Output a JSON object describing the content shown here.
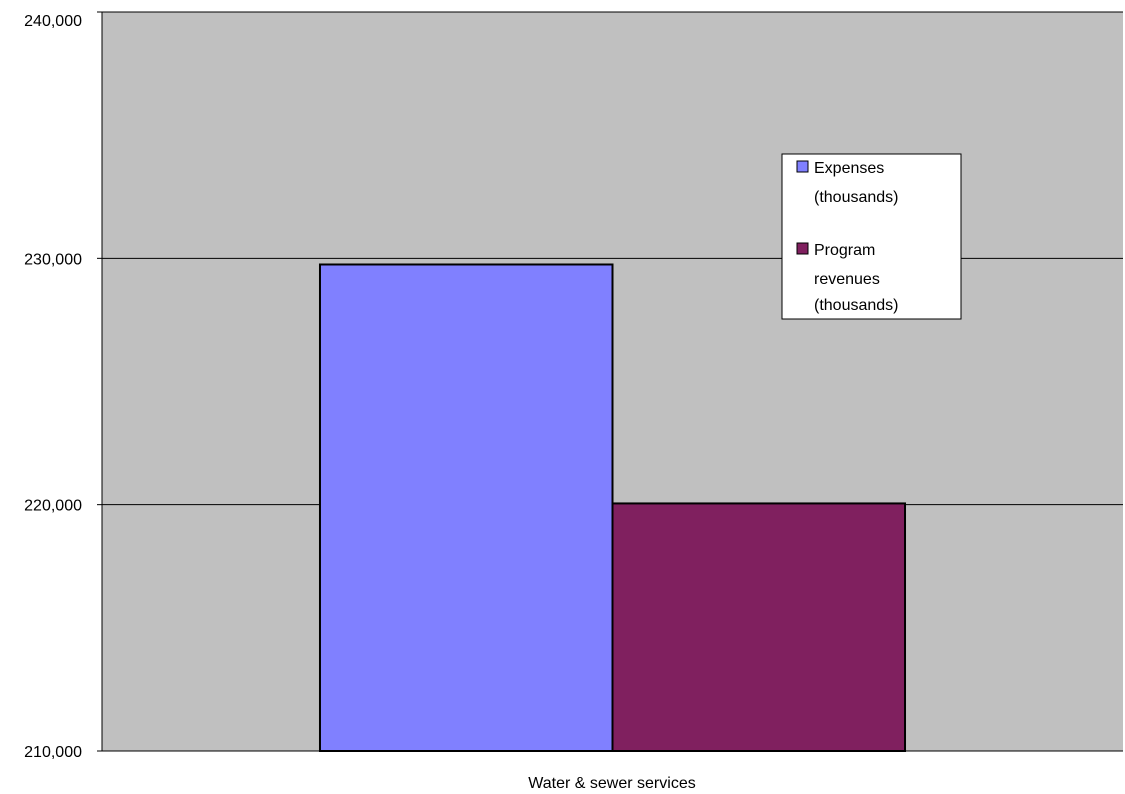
{
  "chart_data": {
    "type": "bar",
    "categories": [
      "Water & sewer services"
    ],
    "series": [
      {
        "name": "Expenses (thousands)",
        "legend_lines": [
          "Expenses",
          "(thousands)"
        ],
        "values": [
          229750
        ],
        "color": "#8080FF"
      },
      {
        "name": "Program revenues (thousands)",
        "legend_lines": [
          "Program",
          "revenues",
          "(thousands)"
        ],
        "values": [
          220050
        ],
        "color": "#80205F"
      }
    ],
    "title": "",
    "xlabel": "",
    "ylabel": "",
    "ylim": [
      210000,
      240000
    ],
    "yticks": [
      210000,
      220000,
      230000,
      240000
    ],
    "ytick_labels": [
      "210,000",
      "220,000",
      "230,000",
      "240,000"
    ],
    "grid": true,
    "plot_background": "#C0C0C0",
    "legend_position": "right"
  }
}
